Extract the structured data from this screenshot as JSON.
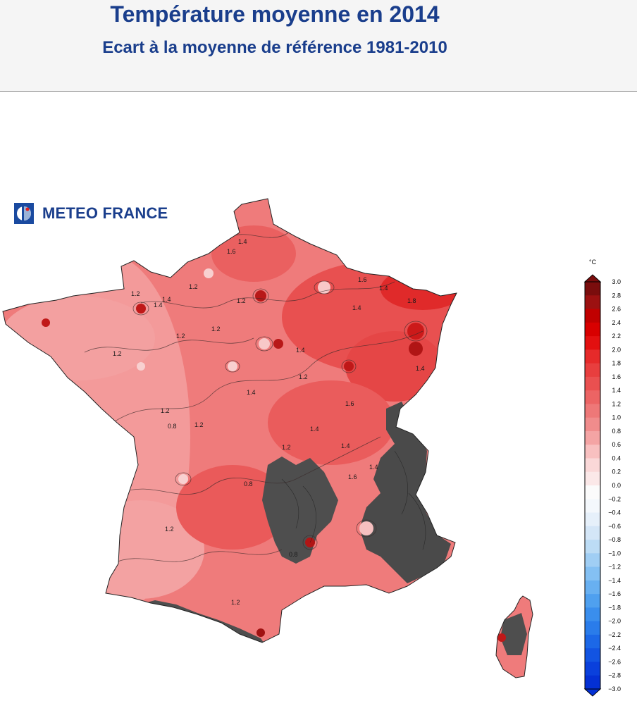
{
  "header": {
    "title": "Température moyenne en 2014",
    "subtitle": "Ecart à la moyenne de référence 1981-2010"
  },
  "logo": {
    "text": "METEO FRANCE",
    "icon": "meteo-france-logo-icon"
  },
  "legend": {
    "unit": "°C",
    "min": -3.0,
    "max": 3.0,
    "step": 0.2,
    "labels": [
      "3.0",
      "2.8",
      "2.6",
      "2.4",
      "2.2",
      "2.0",
      "1.8",
      "1.6",
      "1.4",
      "1.2",
      "1.0",
      "0.8",
      "0.6",
      "0.4",
      "0.2",
      "0.0",
      "−0.2",
      "−0.4",
      "−0.6",
      "−0.8",
      "−1.0",
      "−1.2",
      "−1.4",
      "−1.6",
      "−1.8",
      "−2.0",
      "−2.2",
      "−2.4",
      "−2.6",
      "−2.8",
      "−3.0"
    ],
    "colors_warm_to_cold": [
      "#7a0d0d",
      "#9c1111",
      "#c00000",
      "#d80000",
      "#e31010",
      "#e62a2a",
      "#e83e3e",
      "#ea5050",
      "#ec6464",
      "#ee7878",
      "#f08c8c",
      "#f4a4a4",
      "#f8c0c0",
      "#fad8d8",
      "#fbe8e8",
      "#fbfbfb",
      "#f4f8fc",
      "#e6f0fa",
      "#d4e6f7",
      "#bcdcf5",
      "#a0cef4",
      "#84c0f3",
      "#68b0f1",
      "#4fa0ef",
      "#3a8eed",
      "#2a7cea",
      "#1c68e7",
      "#1254e2",
      "#0a40dc",
      "#0430d4"
    ]
  },
  "map": {
    "contour_labels": [
      "1.6",
      "1.4",
      "1.2",
      "1.4",
      "1.6",
      "1.4",
      "1.2",
      "1.4",
      "1.2",
      "1.4",
      "1.6",
      "1.8",
      "1.4",
      "1.2",
      "1.4",
      "1.2",
      "1.2",
      "1.2",
      "1.4",
      "1.4",
      "1.2",
      "0.8",
      "1.4",
      "1.6",
      "1.2",
      "1.2",
      "1.2",
      "1.4",
      "0.8",
      "1.2",
      "0.8"
    ]
  }
}
